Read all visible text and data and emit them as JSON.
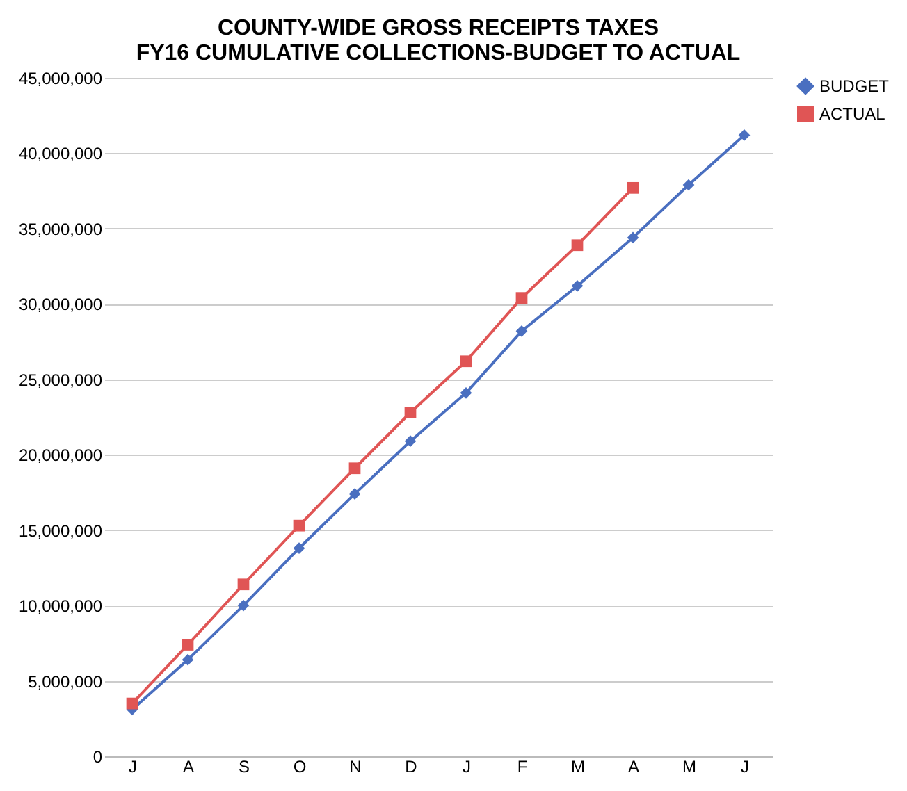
{
  "chart_data": {
    "type": "line",
    "title": [
      "COUNTY-WIDE GROSS RECEIPTS TAXES",
      "FY16 CUMULATIVE COLLECTIONS-BUDGET TO ACTUAL"
    ],
    "categories": [
      "J",
      "A",
      "S",
      "O",
      "N",
      "D",
      "J",
      "F",
      "M",
      "A",
      "M",
      "J"
    ],
    "series": [
      {
        "name": "BUDGET",
        "color": "#4a6fc0",
        "marker": "diamond",
        "values": [
          3100000,
          6400000,
          10000000,
          13800000,
          17400000,
          20900000,
          24100000,
          28200000,
          31200000,
          34400000,
          37900000,
          41200000
        ]
      },
      {
        "name": "ACTUAL",
        "color": "#e05555",
        "marker": "square",
        "values": [
          3500000,
          7400000,
          11400000,
          15300000,
          19100000,
          22800000,
          26200000,
          30400000,
          33900000,
          37700000,
          null,
          null
        ]
      }
    ],
    "ylim": [
      0,
      45000000
    ],
    "yticks": [
      {
        "value": 0,
        "label": "0"
      },
      {
        "value": 5000000,
        "label": "5,000,000"
      },
      {
        "value": 10000000,
        "label": "10,000,000"
      },
      {
        "value": 15000000,
        "label": "15,000,000"
      },
      {
        "value": 20000000,
        "label": "20,000,000"
      },
      {
        "value": 25000000,
        "label": "25,000,000"
      },
      {
        "value": 30000000,
        "label": "30,000,000"
      },
      {
        "value": 35000000,
        "label": "35,000,000"
      },
      {
        "value": 40000000,
        "label": "40,000,000"
      },
      {
        "value": 45000000,
        "label": "45,000,000"
      }
    ],
    "grid": "y",
    "legend": "right",
    "line_style": "solid"
  }
}
